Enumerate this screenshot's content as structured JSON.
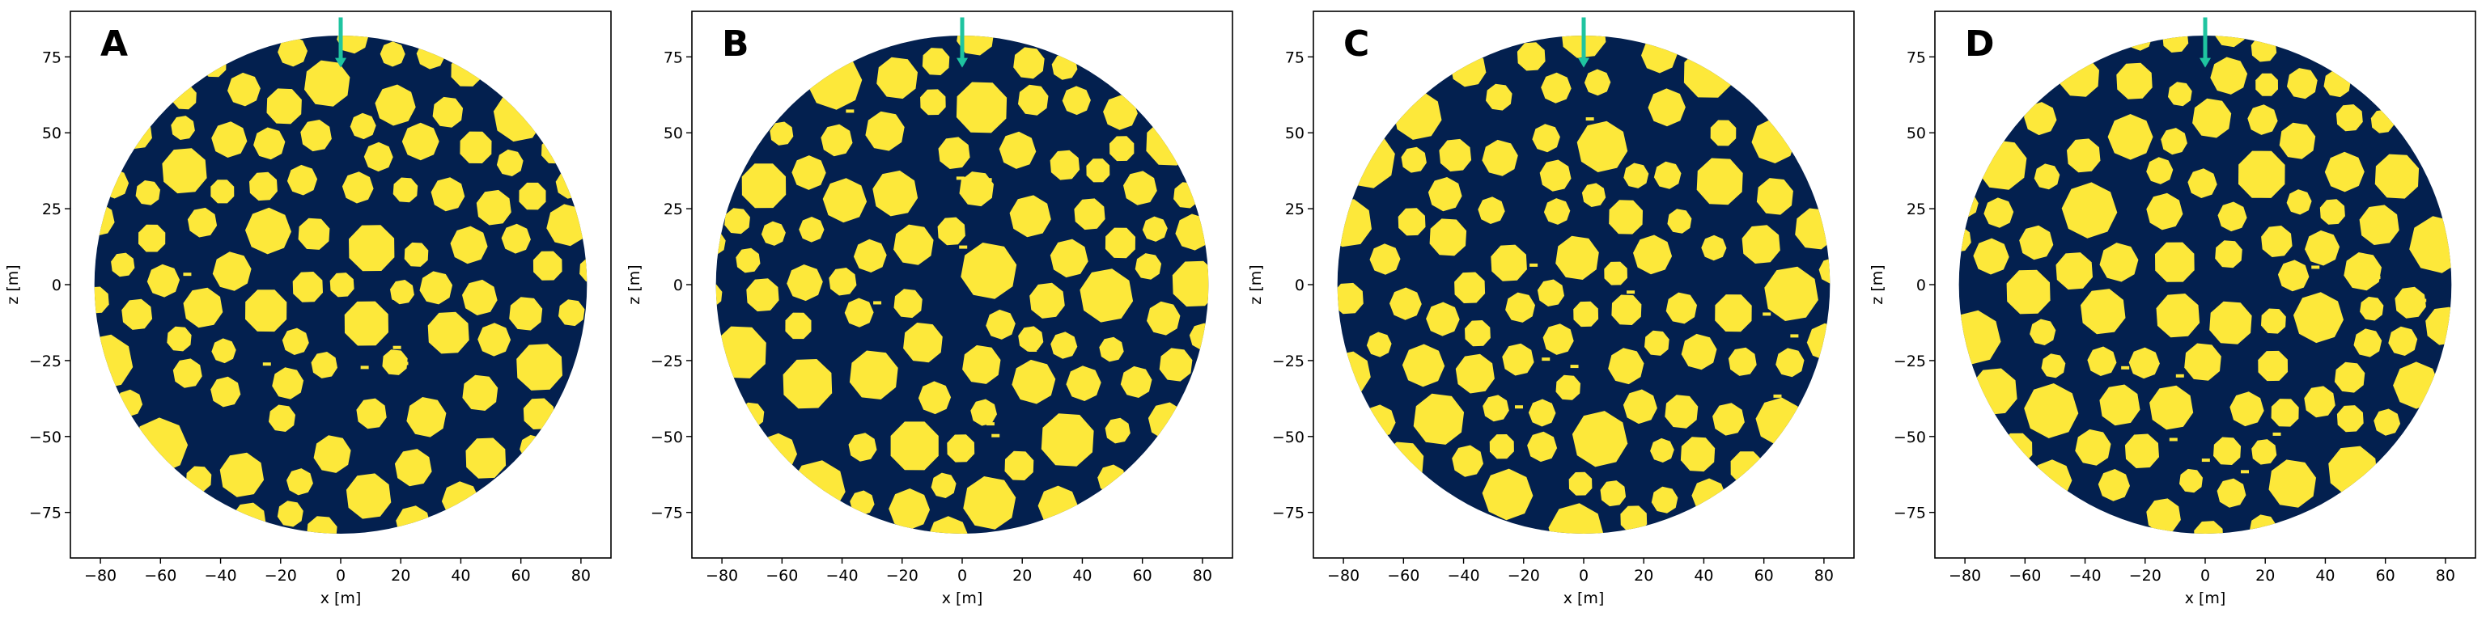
{
  "chart_data": {
    "type": "heatmap",
    "description_units": "meters",
    "panels": [
      {
        "label": "A",
        "xlabel": "x [m]",
        "ylabel": "z [m]",
        "xlim": [
          -90,
          90
        ],
        "ylim": [
          -90,
          90
        ],
        "xticks": [
          -80,
          -60,
          -40,
          -20,
          0,
          20,
          40,
          60,
          80
        ],
        "yticks": [
          75,
          50,
          25,
          0,
          -25,
          -50,
          -75
        ],
        "domain_radius": 82,
        "arrow_x": 0,
        "arrow_z_top": 88,
        "arrow_z_tip": 72,
        "seed": 11
      },
      {
        "label": "B",
        "xlabel": "x [m]",
        "ylabel": "z [m]",
        "xlim": [
          -90,
          90
        ],
        "ylim": [
          -90,
          90
        ],
        "xticks": [
          -80,
          -60,
          -40,
          -20,
          0,
          20,
          40,
          60,
          80
        ],
        "yticks": [
          75,
          50,
          25,
          0,
          -25,
          -50,
          -75
        ],
        "domain_radius": 82,
        "arrow_x": 0,
        "arrow_z_top": 88,
        "arrow_z_tip": 72,
        "seed": 23
      },
      {
        "label": "C",
        "xlabel": "x [m]",
        "ylabel": "z [m]",
        "xlim": [
          -90,
          90
        ],
        "ylim": [
          -90,
          90
        ],
        "xticks": [
          -80,
          -60,
          -40,
          -20,
          0,
          20,
          40,
          60,
          80
        ],
        "yticks": [
          75,
          50,
          25,
          0,
          -25,
          -50,
          -75
        ],
        "domain_radius": 82,
        "arrow_x": 0,
        "arrow_z_top": 88,
        "arrow_z_tip": 72,
        "seed": 37
      },
      {
        "label": "D",
        "xlabel": "x [m]",
        "ylabel": "z [m]",
        "xlim": [
          -90,
          90
        ],
        "ylim": [
          -90,
          90
        ],
        "xticks": [
          -80,
          -60,
          -40,
          -20,
          0,
          20,
          40,
          60,
          80
        ],
        "yticks": [
          75,
          50,
          25,
          0,
          -25,
          -50,
          -75
        ],
        "domain_radius": 82,
        "arrow_x": 0,
        "arrow_z_top": 88,
        "arrow_z_tip": 72,
        "seed": 53
      }
    ],
    "colors": {
      "background_domain": "#03204f",
      "inclusions": "#fde83a",
      "arrow": "#1fc4a0",
      "frame": "#000000"
    }
  }
}
